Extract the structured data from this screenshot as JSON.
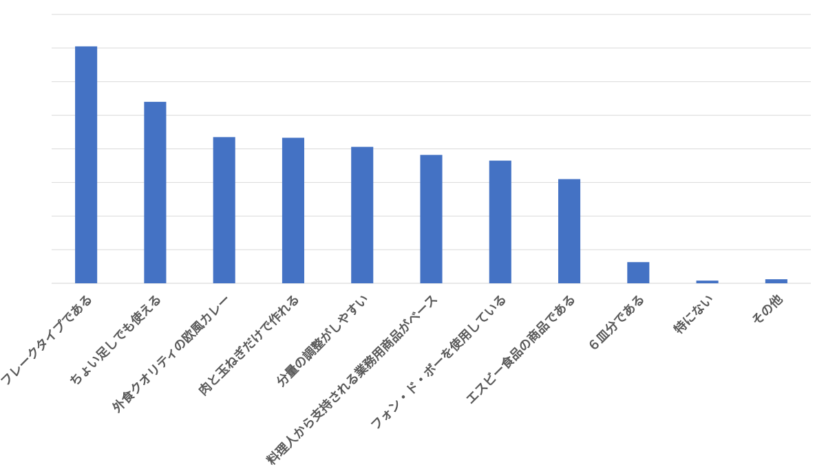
{
  "chart_data": {
    "type": "bar",
    "title": "",
    "xlabel": "",
    "ylabel": "",
    "categories": [
      "フレークタイプである",
      "ちょい足しでも使える",
      "外食クオリティの欧風カレー",
      "肉と玉ねぎだけで作れる",
      "分量の調整がしやすい",
      "料理人から支持される業務用商品がベース",
      "フォン・ド・ボーを使用している",
      "エスビー食品の商品である",
      "６皿分である",
      "特にない",
      "その他"
    ],
    "values": [
      70.5,
      54,
      43.5,
      43.3,
      40.6,
      38.2,
      36.5,
      31,
      6.3,
      0.8,
      1.2
    ],
    "ylim": [
      0,
      80
    ],
    "grid": true,
    "bar_color": "#4472c4"
  }
}
